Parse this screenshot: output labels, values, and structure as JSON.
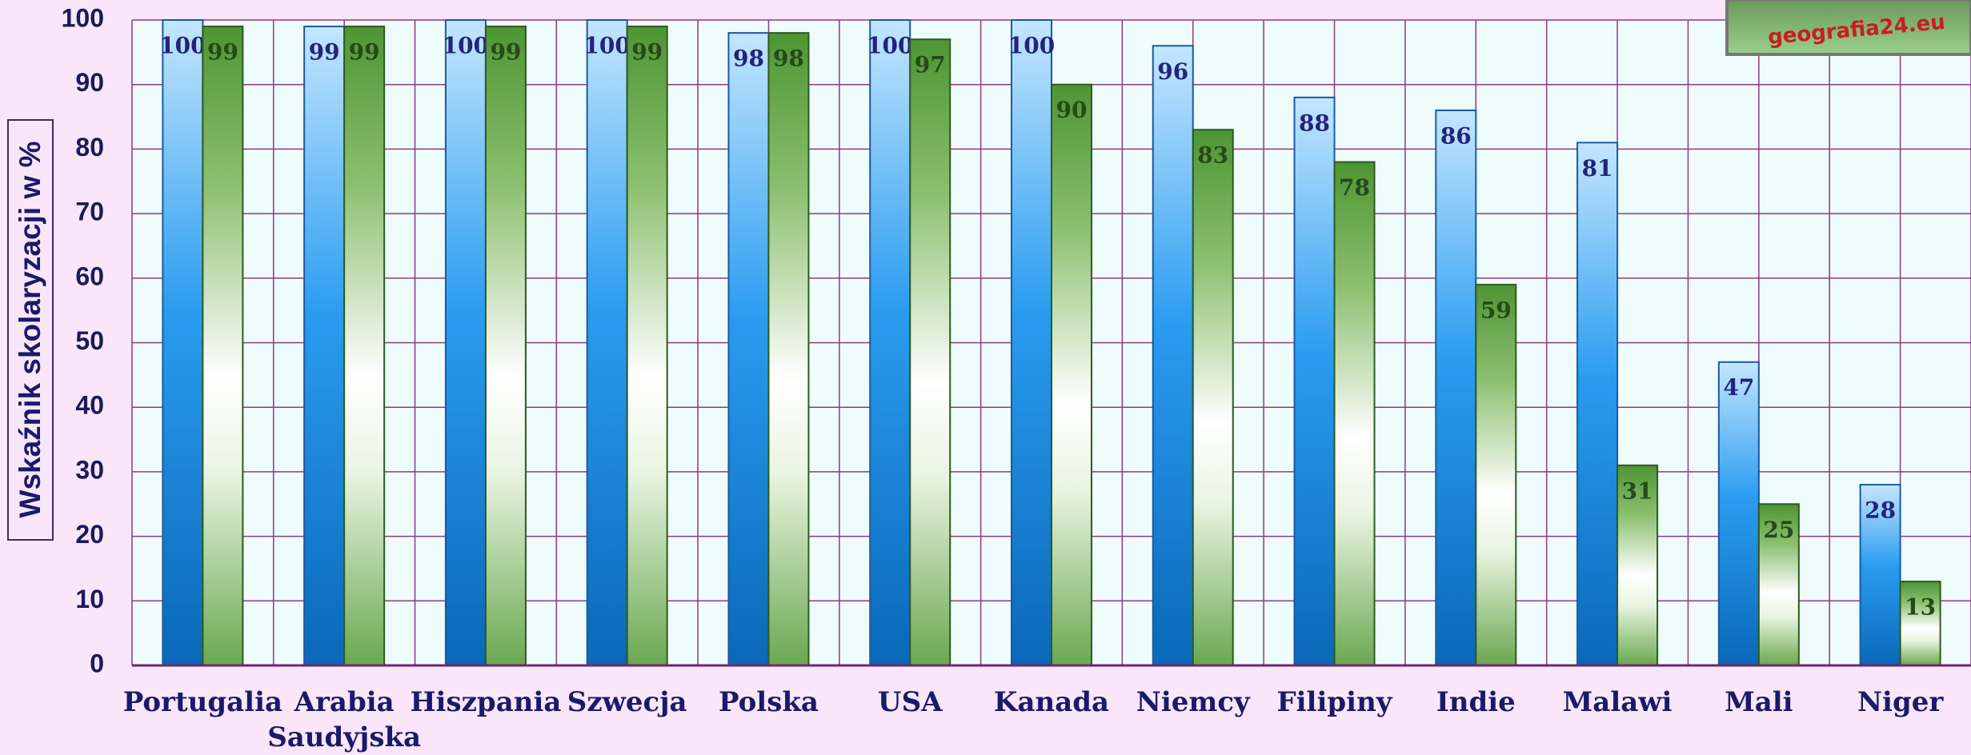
{
  "chart_data": {
    "type": "bar",
    "y_label": "Wskaźnik skolaryzacji w %",
    "logo": "geografia24.eu",
    "categories": [
      "Portugalia",
      "Arabia Saudyjska",
      "Hiszpania",
      "Szwecja",
      "Polska",
      "USA",
      "Kanada",
      "Niemcy",
      "Filipiny",
      "Indie",
      "Malawi",
      "Mali",
      "Niger"
    ],
    "series": [
      {
        "color": "#1c8ae0",
        "values": [
          100,
          99,
          100,
          100,
          98,
          100,
          100,
          96,
          88,
          86,
          81,
          47,
          28
        ]
      },
      {
        "color": "#5a9e3a",
        "values": [
          99,
          99,
          99,
          99,
          98,
          97,
          90,
          83,
          78,
          59,
          31,
          25,
          13
        ]
      }
    ],
    "ylim": [
      0,
      100
    ],
    "yticks": [
      0,
      10,
      20,
      30,
      40,
      50,
      60,
      70,
      80,
      90,
      100
    ],
    "grid": true
  }
}
